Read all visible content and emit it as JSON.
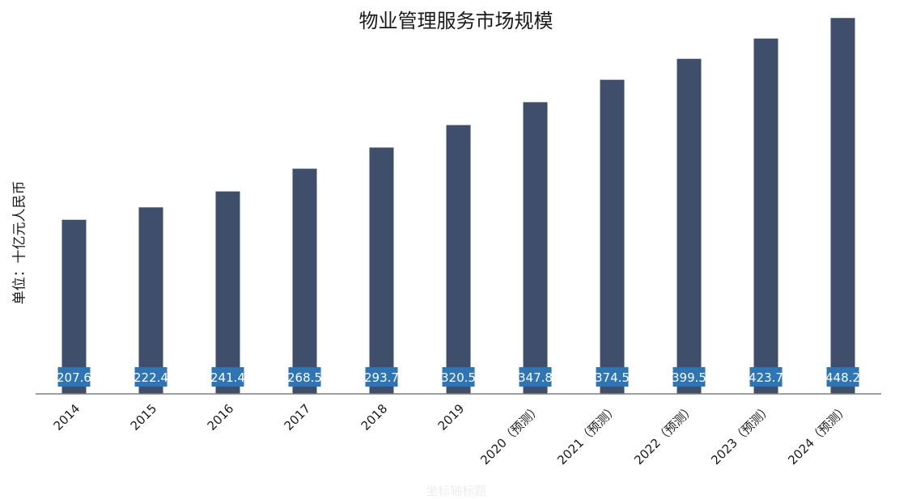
{
  "chart_data": {
    "type": "bar",
    "title": "物业管理服务市场规模",
    "ylabel": "单位：十亿元人民币",
    "xlabel": "坐标轴标题",
    "categories": [
      "2014",
      "2015",
      "2016",
      "2017",
      "2018",
      "2019",
      "2020（预测）",
      "2021（预测）",
      "2022（预测）",
      "2023（预测）",
      "2024（预测）"
    ],
    "values": [
      207.6,
      222.4,
      241.4,
      268.5,
      293.7,
      320.5,
      347.8,
      374.5,
      399.5,
      423.7,
      448.2
    ],
    "ylim": [
      0,
      460
    ],
    "grid": false,
    "legend": "none",
    "colors": {
      "bar": "#3f4e6a",
      "label_bg": "#2e75b6",
      "label_text": "#ffffff",
      "axis": "#7f7f7f"
    }
  }
}
